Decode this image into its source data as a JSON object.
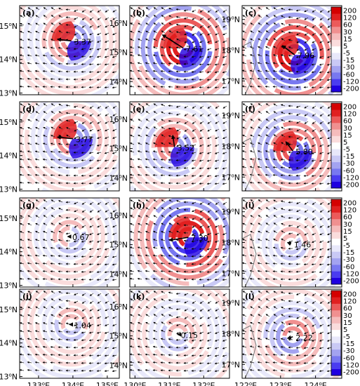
{
  "chart_data": {
    "type": "heatmap",
    "rows": 4,
    "cols": 3,
    "columns": [
      {
        "xticks": [
          {
            "v": 133,
            "label": "133"
          },
          {
            "v": 134,
            "label": "134"
          },
          {
            "v": 135,
            "label": "135"
          }
        ],
        "xlim": [
          132.45,
          135.35
        ],
        "yticks": [
          {
            "v": 13,
            "label": "13"
          },
          {
            "v": 14,
            "label": "14"
          },
          {
            "v": 15,
            "label": "15"
          }
        ],
        "ylim": [
          12.95,
          15.6
        ]
      },
      {
        "xticks": [
          {
            "v": 130,
            "label": "130"
          },
          {
            "v": 131,
            "label": "131"
          },
          {
            "v": 132,
            "label": "132"
          }
        ],
        "xlim": [
          129.85,
          132.75
        ],
        "yticks": [
          {
            "v": 14,
            "label": "14"
          },
          {
            "v": 15,
            "label": "15"
          },
          {
            "v": 16,
            "label": "16"
          }
        ],
        "ylim": [
          13.55,
          16.6
        ]
      },
      {
        "xticks": [
          {
            "v": 122,
            "label": "122"
          },
          {
            "v": 123,
            "label": "123"
          },
          {
            "v": 124,
            "label": "124"
          }
        ],
        "xlim": [
          121.9,
          124.75
        ],
        "yticks": [
          {
            "v": 17,
            "label": "17"
          },
          {
            "v": 18,
            "label": "18"
          },
          {
            "v": 19,
            "label": "19"
          }
        ],
        "ylim": [
          16.55,
          19.45
        ]
      }
    ],
    "degree_symbol": "o",
    "x_suffix": "E",
    "y_suffix": "N",
    "panels": [
      {
        "label": "(a)",
        "value": "3.37",
        "center": [
          133.95,
          14.55
        ],
        "vector_end": [
          133.55,
          14.6
        ]
      },
      {
        "label": "(b)",
        "value": "7.61",
        "center": [
          131.4,
          15.15
        ],
        "vector_end": [
          130.8,
          15.6
        ]
      },
      {
        "label": "(c)",
        "value": "7.96",
        "center": [
          123.4,
          17.85
        ],
        "vector_end": [
          123.05,
          18.15
        ]
      },
      {
        "label": "(d)",
        "value": "3.77",
        "center": [
          134.0,
          14.5
        ],
        "vector_end": [
          133.55,
          14.55
        ]
      },
      {
        "label": "(e)",
        "value": "3.52",
        "center": [
          131.15,
          15.05
        ],
        "vector_end": [
          131.1,
          15.45
        ]
      },
      {
        "label": "(f)",
        "value": "5.80",
        "center": [
          123.35,
          17.85
        ],
        "vector_end": [
          123.15,
          18.15
        ]
      },
      {
        "label": "(g)",
        "value": "0.67",
        "center": [
          133.9,
          14.45
        ],
        "vector_end": [
          133.85,
          14.45
        ]
      },
      {
        "label": "(h)",
        "value": "7.30",
        "center": [
          131.55,
          15.25
        ],
        "vector_end": [
          131.0,
          15.15
        ]
      },
      {
        "label": "(i)",
        "value": "1.46",
        "center": [
          123.3,
          17.95
        ],
        "vector_end": [
          123.2,
          18.0
        ]
      },
      {
        "label": "(j)",
        "value": "1.04",
        "center": [
          133.95,
          14.55
        ],
        "vector_end": [
          133.9,
          14.55
        ]
      },
      {
        "label": "(k)",
        "value": "0.15",
        "center": [
          131.25,
          15.05
        ],
        "vector_end": [
          131.24,
          15.05
        ]
      },
      {
        "label": "(l)",
        "value": "2.22",
        "center": [
          123.35,
          17.9
        ],
        "vector_end": [
          123.2,
          17.85
        ]
      }
    ],
    "colorbar": {
      "levels": [
        "-200",
        "-120",
        "-60",
        "-30",
        "-15",
        "-5",
        "5",
        "15",
        "30",
        "60",
        "120",
        "200"
      ],
      "colors": [
        "#1f00e0",
        "#4a3cf0",
        "#7878f0",
        "#a3a3f0",
        "#c9c9f5",
        "#e8e8fa",
        "#ffffff",
        "#fadcdc",
        "#f5bcbc",
        "#f09090",
        "#eb5a5a",
        "#e02020",
        "#d40000"
      ]
    }
  }
}
